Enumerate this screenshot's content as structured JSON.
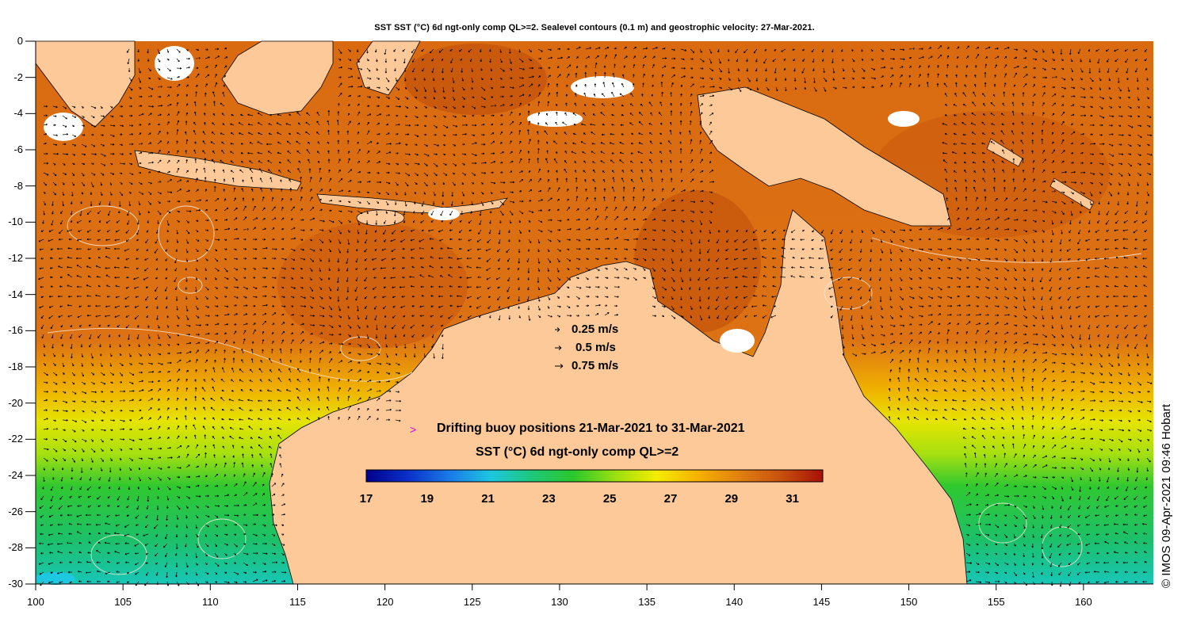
{
  "title": "SST SST (°C) 6d ngt-only comp QL>=2. Sealevel contours (0.1 m) and geostrophic velocity: 27-Mar-2021.",
  "credit": "© IMOS 09-Apr-2021 09:46 Hobart",
  "axes": {
    "x_ticks": [
      "100",
      "105",
      "110",
      "115",
      "120",
      "125",
      "130",
      "135",
      "140",
      "145",
      "150",
      "155",
      "160"
    ],
    "y_ticks": [
      "0",
      "-2",
      "-4",
      "-6",
      "-8",
      "-10",
      "-12",
      "-14",
      "-16",
      "-18",
      "-20",
      "-22",
      "-24",
      "-26",
      "-28",
      "-30"
    ],
    "lon_range": [
      100,
      164
    ],
    "lat_range": [
      -30,
      0
    ]
  },
  "velocity_legend": {
    "items": [
      {
        "label": "0.25 m/s",
        "speed": 0.25
      },
      {
        "label": "0.5 m/s",
        "speed": 0.5
      },
      {
        "label": "0.75 m/s",
        "speed": 0.75
      }
    ]
  },
  "buoys": {
    "label": "Drifting buoy positions 21-Mar-2021 to 31-Mar-2021",
    "marker": ">",
    "color": "#e000e0"
  },
  "colorbar": {
    "title": "SST (°C) 6d ngt-only comp QL>=2",
    "range": [
      17,
      32
    ],
    "ticks": [
      "17",
      "19",
      "21",
      "23",
      "25",
      "27",
      "29",
      "31"
    ],
    "colors": [
      "#00008c",
      "#0a30c8",
      "#1a7ae8",
      "#1ec6e0",
      "#1ec878",
      "#2ac82a",
      "#9ae010",
      "#f4ec00",
      "#f6b000",
      "#e08010",
      "#c8500e",
      "#a81006"
    ]
  },
  "colors": {
    "land": "#fdc999",
    "ocean_warm": "#d9690f",
    "ocean_hot": "#c4520c"
  }
}
